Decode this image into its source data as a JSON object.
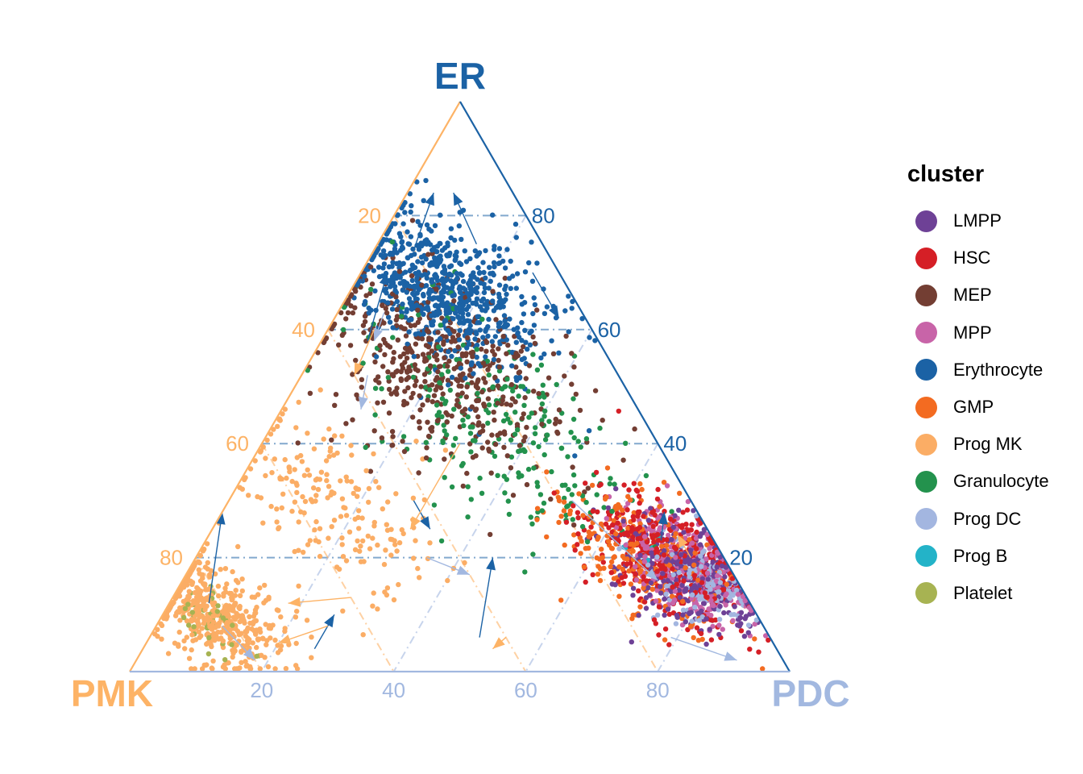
{
  "chart_data": {
    "type": "scatter",
    "subtype": "ternary",
    "axes": {
      "top": {
        "label": "ER",
        "color": "#1B62A5"
      },
      "left": {
        "label": "PMK",
        "color": "#FDB366"
      },
      "right": {
        "label": "PDC",
        "color": "#A2B8E0"
      }
    },
    "ticks": {
      "er": [
        "20",
        "40",
        "60",
        "80"
      ],
      "pmk": [
        "20",
        "40",
        "60",
        "80"
      ],
      "pdc": [
        "20",
        "40",
        "60",
        "80"
      ]
    },
    "tick_values": [
      20,
      40,
      60,
      80
    ],
    "grid": true,
    "legend": {
      "title": "cluster",
      "position": "right",
      "items": [
        {
          "name": "LMPP",
          "color": "#6E4196"
        },
        {
          "name": "HSC",
          "color": "#D51F26"
        },
        {
          "name": "MEP",
          "color": "#733E33"
        },
        {
          "name": "MPP",
          "color": "#C864A8"
        },
        {
          "name": "Erythrocyte",
          "color": "#1B62A5"
        },
        {
          "name": "GMP",
          "color": "#F36B21"
        },
        {
          "name": "Prog MK",
          "color": "#FBAD65"
        },
        {
          "name": "Granulocyte",
          "color": "#23924D"
        },
        {
          "name": "Prog DC",
          "color": "#A3B6E0"
        },
        {
          "name": "Prog B",
          "color": "#23B3C8"
        },
        {
          "name": "Platelet",
          "color": "#A7B352"
        }
      ]
    },
    "cluster_centers": [
      {
        "cluster": "Erythrocyte",
        "er": 66,
        "pmk": 19,
        "pdc": 15,
        "spread": 7,
        "count": 700
      },
      {
        "cluster": "MEP",
        "er": 54,
        "pmk": 26,
        "pdc": 20,
        "spread": 9,
        "count": 520
      },
      {
        "cluster": "Granulocyte",
        "er": 44,
        "pmk": 22,
        "pdc": 34,
        "spread": 10,
        "count": 240
      },
      {
        "cluster": "Prog MK",
        "er": 10,
        "pmk": 82,
        "pdc": 8,
        "spread": 5,
        "count": 480
      },
      {
        "cluster": "Prog MK",
        "er": 30,
        "pmk": 55,
        "pdc": 15,
        "spread": 8,
        "count": 200
      },
      {
        "cluster": "Platelet",
        "er": 8,
        "pmk": 84,
        "pdc": 8,
        "spread": 3,
        "count": 40
      },
      {
        "cluster": "LMPP",
        "er": 17,
        "pmk": 7,
        "pdc": 76,
        "spread": 5,
        "count": 330
      },
      {
        "cluster": "HSC",
        "er": 20,
        "pmk": 8,
        "pdc": 72,
        "spread": 6,
        "count": 400
      },
      {
        "cluster": "MPP",
        "er": 18,
        "pmk": 6,
        "pdc": 76,
        "spread": 5,
        "count": 300
      },
      {
        "cluster": "GMP",
        "er": 20,
        "pmk": 12,
        "pdc": 68,
        "spread": 6,
        "count": 240
      },
      {
        "cluster": "Prog DC",
        "er": 16,
        "pmk": 6,
        "pdc": 78,
        "spread": 4,
        "count": 160
      },
      {
        "cluster": "Prog B",
        "er": 20,
        "pmk": 10,
        "pdc": 70,
        "spread": 3,
        "count": 8
      }
    ],
    "arrows": [
      {
        "color": "#1B62A5",
        "from": [
          74,
          20,
          6
        ],
        "to": [
          84,
          12,
          4
        ]
      },
      {
        "color": "#1B62A5",
        "from": [
          75,
          10,
          15
        ],
        "to": [
          84,
          9,
          7
        ]
      },
      {
        "color": "#1B62A5",
        "from": [
          58,
          35,
          7
        ],
        "to": [
          70,
          26,
          4
        ]
      },
      {
        "color": "#1B62A5",
        "from": [
          70,
          4,
          26
        ],
        "to": [
          62,
          4,
          34
        ]
      },
      {
        "color": "#1B62A5",
        "from": [
          12,
          82,
          6
        ],
        "to": [
          28,
          72,
          0
        ]
      },
      {
        "color": "#1B62A5",
        "from": [
          4,
          70,
          26
        ],
        "to": [
          10,
          64,
          26
        ]
      },
      {
        "color": "#1B62A5",
        "from": [
          30,
          42,
          28
        ],
        "to": [
          25,
          42,
          33
        ]
      },
      {
        "color": "#1B62A5",
        "from": [
          23,
          8,
          69
        ],
        "to": [
          28,
          5,
          67
        ]
      },
      {
        "color": "#1B62A5",
        "from": [
          6,
          44,
          50
        ],
        "to": [
          20,
          35,
          45
        ]
      },
      {
        "color": "#A2B8E0",
        "from": [
          63,
          30,
          7
        ],
        "to": [
          58,
          34,
          8
        ]
      },
      {
        "color": "#A2B8E0",
        "from": [
          52,
          38,
          10
        ],
        "to": [
          46,
          42,
          12
        ]
      },
      {
        "color": "#A2B8E0",
        "from": [
          30,
          18,
          52
        ],
        "to": [
          16,
          12,
          72
        ]
      },
      {
        "color": "#A2B8E0",
        "from": [
          6,
          15,
          79
        ],
        "to": [
          2,
          7,
          91
        ]
      },
      {
        "color": "#A2B8E0",
        "from": [
          8,
          82,
          10
        ],
        "to": [
          2,
          80,
          18
        ]
      },
      {
        "color": "#A2B8E0",
        "from": [
          20,
          45,
          35
        ],
        "to": [
          17,
          40,
          43
        ]
      },
      {
        "color": "#FDB366",
        "from": [
          60,
          33,
          7
        ],
        "to": [
          52,
          40,
          8
        ]
      },
      {
        "color": "#FDB366",
        "from": [
          40,
          30,
          30
        ],
        "to": [
          25,
          45,
          30
        ]
      },
      {
        "color": "#FDB366",
        "from": [
          8,
          66,
          26
        ],
        "to": [
          5,
          75,
          20
        ]
      },
      {
        "color": "#FDB366",
        "from": [
          13,
          60,
          27
        ],
        "to": [
          12,
          70,
          18
        ]
      },
      {
        "color": "#FDB366",
        "from": [
          6,
          40,
          54
        ],
        "to": [
          4,
          43,
          53
        ]
      },
      {
        "color": "#FDB366",
        "from": [
          20,
          5,
          75
        ],
        "to": [
          24,
          5,
          71
        ]
      }
    ]
  }
}
